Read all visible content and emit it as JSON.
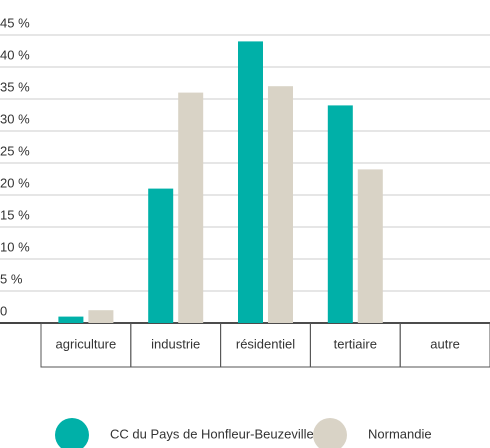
{
  "chart_data": {
    "type": "bar",
    "categories": [
      "agriculture",
      "industrie",
      "résidentiel",
      "tertiaire",
      "autre"
    ],
    "series": [
      {
        "name": "CC du Pays de Honfleur-Beuzeville",
        "color": "#00b0a8",
        "values": [
          1,
          21,
          44,
          34,
          0
        ]
      },
      {
        "name": "Normandie",
        "color": "#d9d3c6",
        "values": [
          2,
          36,
          37,
          24,
          0
        ]
      }
    ],
    "ylim": [
      0,
      45
    ],
    "yticks": [
      0,
      {
        "value": 5,
        "label": "5 %"
      },
      {
        "value": 10,
        "label": "10 %"
      },
      {
        "value": 15,
        "label": "15 %"
      },
      {
        "value": 20,
        "label": "20 %"
      },
      {
        "value": 25,
        "label": "25 %"
      },
      {
        "value": 30,
        "label": "30 %"
      },
      {
        "value": 35,
        "label": "35 %"
      },
      {
        "value": 40,
        "label": "40 %"
      },
      {
        "value": 45,
        "label": "45 %"
      }
    ],
    "grid": true
  }
}
